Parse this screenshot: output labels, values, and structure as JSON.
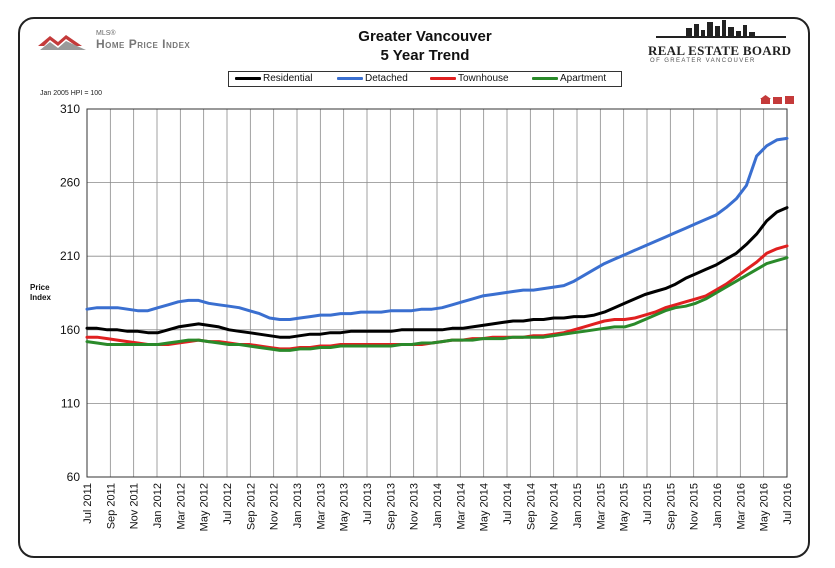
{
  "header": {
    "title_line1": "Greater Vancouver",
    "title_line2": "5 Year Trend",
    "left_logo_small": "MLS®",
    "left_logo_text": "Home Price Index",
    "right_logo_text": "REAL ESTATE BOARD",
    "right_logo_sub": "OF GREATER VANCOUVER",
    "hpi_note": "Jan 2005 HPI = 100"
  },
  "chart_data": {
    "type": "line",
    "title": "Greater Vancouver 5 Year Trend",
    "ylabel_line1": "Price",
    "ylabel_line2": "Index",
    "xlabel": "",
    "ylim": [
      60,
      310
    ],
    "yticks": [
      60,
      110,
      160,
      210,
      260,
      310
    ],
    "grid": true,
    "legend_placement": "top",
    "x_tick_labels": [
      "Jul 2011",
      "Sep 2011",
      "Nov 2011",
      "Jan 2012",
      "Mar 2012",
      "May 2012",
      "Jul 2012",
      "Sep 2012",
      "Nov 2012",
      "Jan 2013",
      "Mar 2013",
      "May 2013",
      "Jul 2013",
      "Sep 2013",
      "Nov 2013",
      "Jan 2014",
      "Mar 2014",
      "May 2014",
      "Jul 2014",
      "Sep 2014",
      "Nov 2014",
      "Jan 2015",
      "Mar 2015",
      "May 2015",
      "Jul 2015",
      "Sep 2015",
      "Nov 2015",
      "Jan 2016",
      "Mar 2016",
      "May 2016",
      "Jul 2016"
    ],
    "series": [
      {
        "name": "Residential",
        "color": "#000000",
        "values": [
          161,
          161,
          160,
          160,
          159,
          159,
          158,
          158,
          160,
          162,
          163,
          164,
          163,
          162,
          160,
          159,
          158,
          157,
          156,
          155,
          155,
          156,
          157,
          157,
          158,
          158,
          159,
          159,
          159,
          159,
          159,
          160,
          160,
          160,
          160,
          160,
          161,
          161,
          162,
          163,
          164,
          165,
          166,
          166,
          167,
          167,
          168,
          168,
          169,
          169,
          170,
          172,
          175,
          178,
          181,
          184,
          186,
          188,
          191,
          195,
          198,
          201,
          204,
          208,
          212,
          218,
          225,
          234,
          240,
          243
        ]
      },
      {
        "name": "Detached",
        "color": "#3a6fd0",
        "values": [
          174,
          175,
          175,
          175,
          174,
          173,
          173,
          175,
          177,
          179,
          180,
          180,
          178,
          177,
          176,
          175,
          173,
          171,
          168,
          167,
          167,
          168,
          169,
          170,
          170,
          171,
          171,
          172,
          172,
          172,
          173,
          173,
          173,
          174,
          174,
          175,
          177,
          179,
          181,
          183,
          184,
          185,
          186,
          187,
          187,
          188,
          189,
          190,
          193,
          197,
          201,
          205,
          208,
          211,
          214,
          217,
          220,
          223,
          226,
          229,
          232,
          235,
          238,
          243,
          249,
          258,
          278,
          285,
          289,
          290
        ]
      },
      {
        "name": "Townhouse",
        "color": "#e02020",
        "values": [
          155,
          155,
          154,
          153,
          152,
          151,
          150,
          150,
          150,
          151,
          152,
          153,
          152,
          152,
          151,
          150,
          150,
          149,
          148,
          147,
          147,
          148,
          148,
          149,
          149,
          150,
          150,
          150,
          150,
          150,
          150,
          150,
          150,
          150,
          151,
          152,
          153,
          153,
          154,
          154,
          155,
          155,
          155,
          155,
          156,
          156,
          157,
          158,
          160,
          162,
          164,
          166,
          167,
          167,
          168,
          170,
          172,
          175,
          177,
          179,
          181,
          183,
          187,
          191,
          196,
          201,
          206,
          212,
          215,
          217
        ]
      },
      {
        "name": "Apartment",
        "color": "#2a8a2a",
        "values": [
          152,
          151,
          150,
          150,
          150,
          150,
          150,
          150,
          151,
          152,
          153,
          153,
          152,
          151,
          150,
          150,
          149,
          148,
          147,
          146,
          146,
          147,
          147,
          148,
          148,
          149,
          149,
          149,
          149,
          149,
          149,
          150,
          150,
          151,
          151,
          152,
          153,
          153,
          153,
          154,
          154,
          154,
          155,
          155,
          155,
          155,
          156,
          157,
          158,
          159,
          160,
          161,
          162,
          162,
          164,
          167,
          170,
          173,
          175,
          176,
          178,
          181,
          185,
          189,
          193,
          197,
          201,
          205,
          207,
          209
        ]
      }
    ]
  }
}
